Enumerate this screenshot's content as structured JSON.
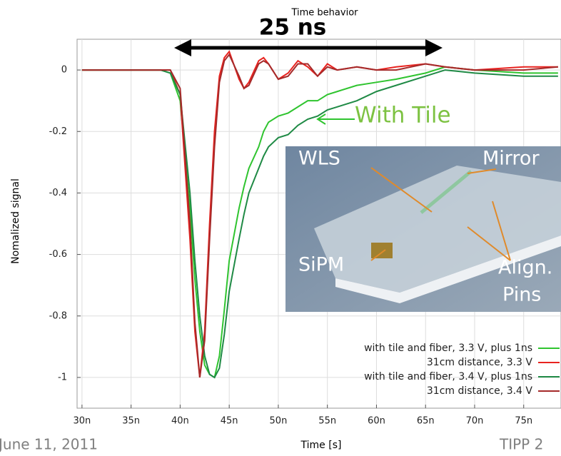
{
  "chart_data": {
    "type": "line",
    "title": "Time behavior",
    "xlabel": "Time [s]",
    "ylabel": "Nomalized signal",
    "annotations": [
      "25 ns",
      "With Tile"
    ],
    "x": [
      3e-08,
      3.5e-08,
      3.8e-08,
      3.9e-08,
      4e-08,
      4.1e-08,
      4.15e-08,
      4.2e-08,
      4.25e-08,
      4.3e-08,
      4.35e-08,
      4.4e-08,
      4.45e-08,
      4.5e-08,
      4.6e-08,
      4.65e-08,
      4.7e-08,
      4.8e-08,
      4.85e-08,
      4.9e-08,
      5e-08,
      5.1e-08,
      5.2e-08,
      5.3e-08,
      5.4e-08,
      5.5e-08,
      5.6e-08,
      5.8e-08,
      6e-08,
      6.2e-08,
      6.5e-08,
      6.7e-08,
      7e-08,
      7.5e-08,
      7.85e-08
    ],
    "series": [
      {
        "name": "with tile and fiber, 3.3 V, plus 1ns",
        "color": "#2fc42f",
        "values": [
          0,
          0,
          0,
          -0.01,
          -0.1,
          -0.45,
          -0.68,
          -0.85,
          -0.96,
          -0.99,
          -1.0,
          -0.93,
          -0.78,
          -0.62,
          -0.45,
          -0.38,
          -0.32,
          -0.25,
          -0.2,
          -0.17,
          -0.15,
          -0.14,
          -0.12,
          -0.1,
          -0.1,
          -0.08,
          -0.07,
          -0.05,
          -0.04,
          -0.03,
          -0.01,
          0.01,
          0,
          -0.01,
          -0.01
        ]
      },
      {
        "name": "31cm distance, 3.3 V",
        "color": "#e8231f",
        "values": [
          0,
          0,
          0,
          0,
          -0.08,
          -0.55,
          -0.85,
          -1.0,
          -0.85,
          -0.5,
          -0.2,
          -0.02,
          0.04,
          0.06,
          -0.03,
          -0.06,
          -0.04,
          0.03,
          0.04,
          0.02,
          -0.03,
          -0.01,
          0.03,
          0.01,
          -0.02,
          0.02,
          0,
          0.01,
          0,
          0.01,
          0.02,
          0.01,
          0,
          0.01,
          0.01
        ]
      },
      {
        "name": "with tile and fiber, 3.4 V, plus 1ns",
        "color": "#1f8a45",
        "values": [
          0,
          0,
          0,
          -0.01,
          -0.08,
          -0.4,
          -0.62,
          -0.8,
          -0.93,
          -0.99,
          -1.0,
          -0.97,
          -0.86,
          -0.72,
          -0.55,
          -0.47,
          -0.4,
          -0.32,
          -0.28,
          -0.25,
          -0.22,
          -0.21,
          -0.18,
          -0.16,
          -0.15,
          -0.13,
          -0.12,
          -0.1,
          -0.07,
          -0.05,
          -0.02,
          0,
          -0.01,
          -0.02,
          -0.02
        ]
      },
      {
        "name": "31cm distance, 3.4 V",
        "color": "#a52a2a",
        "values": [
          0,
          0,
          0,
          0,
          -0.06,
          -0.5,
          -0.82,
          -1.0,
          -0.88,
          -0.55,
          -0.25,
          -0.04,
          0.03,
          0.05,
          -0.02,
          -0.06,
          -0.05,
          0.02,
          0.03,
          0.02,
          -0.03,
          -0.02,
          0.02,
          0.02,
          -0.02,
          0.01,
          0,
          0.01,
          0,
          0,
          0.02,
          0.01,
          0,
          0,
          0.01
        ]
      }
    ],
    "xlim": [
      2.95e-08,
      7.88e-08
    ],
    "ylim": [
      -1.1,
      0.1
    ],
    "xticks": [
      {
        "value": 3e-08,
        "label": "30n"
      },
      {
        "value": 3.5e-08,
        "label": "35n"
      },
      {
        "value": 4e-08,
        "label": "40n"
      },
      {
        "value": 4.5e-08,
        "label": "45n"
      },
      {
        "value": 5e-08,
        "label": "50n"
      },
      {
        "value": 5.5e-08,
        "label": "55n"
      },
      {
        "value": 6e-08,
        "label": "60n"
      },
      {
        "value": 6.5e-08,
        "label": "65n"
      },
      {
        "value": 7e-08,
        "label": "70n"
      },
      {
        "value": 7.5e-08,
        "label": "75n"
      }
    ],
    "yticks": [
      0,
      -0.2,
      -0.4,
      -0.6,
      -0.8,
      -1
    ],
    "grid": true,
    "legend": "lower right"
  },
  "inset": {
    "labels": [
      "WLS",
      "Mirror",
      "SiPM",
      "Align.",
      "Pins"
    ]
  },
  "footer": {
    "date": "June 11, 2011",
    "event": "TIPP 2"
  }
}
